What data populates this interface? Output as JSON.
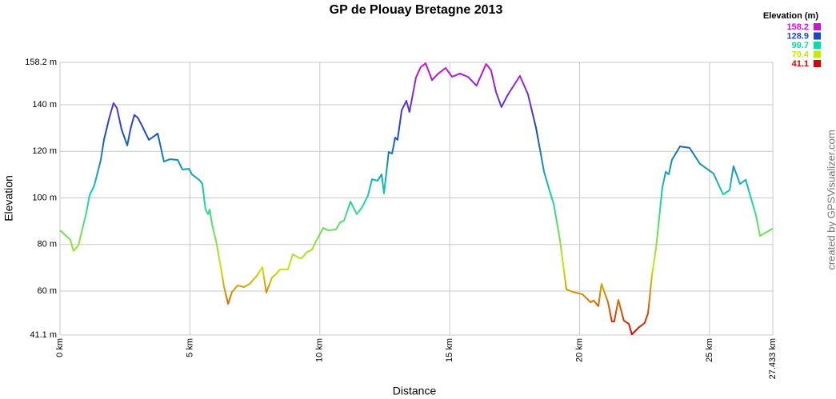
{
  "chart_data": {
    "type": "line",
    "title": "GP de Plouay Bretagne 2013",
    "x_label": "Distance",
    "y_label": "Elevation",
    "credit": "created by GPSVisualizer.com",
    "x": [
      0,
      0.4,
      0.52,
      0.71,
      1.02,
      1.14,
      1.32,
      1.57,
      1.69,
      1.9,
      2.06,
      2.19,
      2.37,
      2.59,
      2.71,
      2.86,
      2.99,
      3.17,
      3.42,
      3.76,
      3.85,
      4.0,
      4.22,
      4.53,
      4.71,
      4.96,
      5.08,
      5.39,
      5.48,
      5.6,
      5.7,
      5.76,
      5.85,
      6.03,
      6.19,
      6.31,
      6.47,
      6.62,
      6.84,
      7.08,
      7.3,
      7.57,
      7.79,
      7.94,
      8.16,
      8.31,
      8.47,
      8.77,
      8.96,
      9.24,
      9.33,
      9.48,
      9.7,
      9.85,
      10.13,
      10.31,
      10.62,
      10.78,
      10.93,
      11.18,
      11.42,
      11.61,
      11.85,
      12.01,
      12.22,
      12.38,
      12.47,
      12.65,
      12.78,
      12.9,
      12.99,
      13.15,
      13.33,
      13.45,
      13.7,
      13.88,
      14.07,
      14.32,
      14.53,
      14.84,
      15.09,
      15.39,
      15.7,
      16.03,
      16.4,
      16.59,
      16.78,
      16.99,
      17.21,
      17.7,
      18.01,
      18.32,
      18.63,
      18.81,
      19.0,
      19.24,
      19.49,
      19.74,
      20.11,
      20.42,
      20.54,
      20.72,
      20.84,
      21.09,
      21.24,
      21.33,
      21.49,
      21.7,
      21.89,
      22.01,
      22.26,
      22.5,
      22.63,
      22.78,
      22.94,
      23.18,
      23.31,
      23.43,
      23.55,
      23.86,
      24.23,
      24.63,
      25.15,
      25.52,
      25.77,
      25.92,
      26.17,
      26.39,
      26.79,
      26.94,
      27.433
    ],
    "values": [
      86.1,
      82,
      77.2,
      79.6,
      94,
      101.2,
      105.3,
      116.3,
      124.9,
      134.5,
      140.7,
      138.6,
      129.4,
      122.5,
      129.4,
      135.6,
      134.5,
      130.7,
      124.9,
      127.6,
      123.2,
      115.6,
      116.6,
      116.3,
      112.2,
      112.5,
      110.1,
      107.4,
      106,
      95,
      93,
      95,
      88.8,
      80.2,
      70,
      62,
      54.5,
      59.6,
      62.4,
      61.7,
      63.1,
      66.5,
      70.3,
      59.3,
      65.8,
      67.2,
      69.3,
      69.3,
      75.8,
      74,
      74.4,
      76.5,
      77.8,
      81.3,
      87.1,
      86.1,
      86.4,
      89.5,
      90.2,
      98.4,
      93,
      95.7,
      100.9,
      108,
      107.4,
      110.1,
      101.9,
      119.7,
      119,
      125.9,
      124.9,
      137.6,
      141.7,
      136.9,
      151.7,
      156.1,
      157.8,
      150.6,
      153.1,
      155.8,
      152,
      153.4,
      152,
      148.2,
      157.5,
      154.8,
      145.5,
      139,
      143.8,
      152.4,
      144.5,
      130.1,
      111.2,
      104.3,
      97.4,
      82,
      60.7,
      59.6,
      58.6,
      55.2,
      55.9,
      53.5,
      63.1,
      55.2,
      46.9,
      46.9,
      56.2,
      47.3,
      45.9,
      41.4,
      44.2,
      46.3,
      50.4,
      66.5,
      78.5,
      104.3,
      111.2,
      110.1,
      116.3,
      122.1,
      121.5,
      114.6,
      110.5,
      101.5,
      103.3,
      113.6,
      106,
      107.8,
      92.3,
      83.7,
      86.8
    ],
    "xlim": [
      0,
      27.433
    ],
    "ylim": [
      41.1,
      158.2
    ],
    "xticks": [
      {
        "value": 0,
        "label": "0 km"
      },
      {
        "value": 5,
        "label": "5 km"
      },
      {
        "value": 10,
        "label": "10 km"
      },
      {
        "value": 15,
        "label": "15 km"
      },
      {
        "value": 20,
        "label": "20 km"
      },
      {
        "value": 25,
        "label": "25 km"
      },
      {
        "value": 27.433,
        "label": "27.433 km"
      }
    ],
    "yticks": [
      {
        "value": 41.1,
        "label": "41.1 m"
      },
      {
        "value": 60,
        "label": "60 m"
      },
      {
        "value": 80,
        "label": "80 m"
      },
      {
        "value": 100,
        "label": "100 m"
      },
      {
        "value": 120,
        "label": "120 m"
      },
      {
        "value": 140,
        "label": "140 m"
      },
      {
        "value": 158.2,
        "label": "158.2 m"
      }
    ],
    "grid": true,
    "legend": {
      "position": "top-right",
      "title": "Elevation (m)",
      "entries": [
        {
          "value": 158.2,
          "color": "#d010d8"
        },
        {
          "value": 128.9,
          "color": "#1848d0"
        },
        {
          "value": 99.7,
          "color": "#10d8a8"
        },
        {
          "value": 70.4,
          "color": "#c8e800"
        },
        {
          "value": 41.1,
          "color": "#e00000"
        }
      ]
    }
  }
}
